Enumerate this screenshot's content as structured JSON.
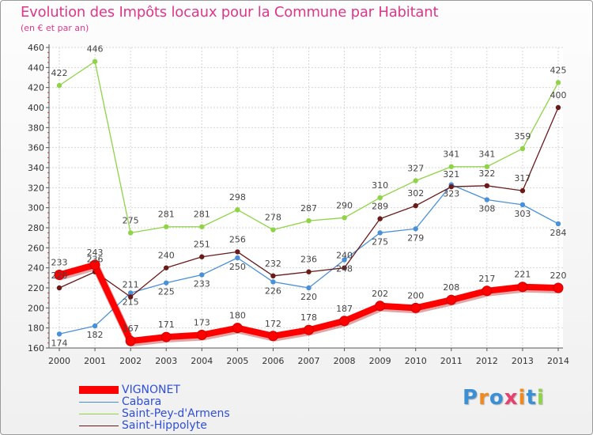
{
  "chart_data": {
    "type": "line",
    "title": "Evolution des Impôts locaux pour la Commune par Habitant",
    "subtitle": "(en € et par an)",
    "xlabel": "",
    "ylabel": "",
    "x": [
      "2000",
      "2001",
      "2002",
      "2003",
      "2004",
      "2005",
      "2006",
      "2007",
      "2008",
      "2009",
      "2010",
      "2011",
      "2012",
      "2013",
      "2014"
    ],
    "ylim": [
      160,
      460
    ],
    "yticks": [
      160,
      180,
      200,
      220,
      240,
      260,
      280,
      300,
      320,
      340,
      360,
      380,
      400,
      420,
      440,
      460
    ],
    "grid": true,
    "legend_position": "bottom-left",
    "series": [
      {
        "name": "VIGNONET",
        "color": "#ff0000",
        "values": [
          233,
          243,
          167,
          171,
          173,
          180,
          172,
          178,
          187,
          202,
          200,
          208,
          217,
          221,
          220
        ]
      },
      {
        "name": "Cabara",
        "color": "#4a90d9",
        "values": [
          174,
          182,
          215,
          225,
          233,
          250,
          226,
          220,
          248,
          275,
          279,
          323,
          308,
          303,
          284
        ]
      },
      {
        "name": "Saint-Pey-d'Armens",
        "color": "#8ed446",
        "values": [
          422,
          446,
          275,
          281,
          281,
          298,
          278,
          287,
          290,
          310,
          327,
          341,
          341,
          359,
          425
        ]
      },
      {
        "name": "Saint-Hippolyte",
        "color": "#6b1a1a",
        "values": [
          220,
          236,
          211,
          240,
          251,
          256,
          232,
          236,
          240,
          289,
          302,
          321,
          322,
          317,
          400
        ]
      }
    ]
  },
  "logo": {
    "text": "Proxiti",
    "letters": [
      "P",
      "r",
      "o",
      "x",
      "i",
      "t",
      "i"
    ],
    "colors": [
      "#3a8fd6",
      "#f08a1c",
      "#3a8fd6",
      "#e83f6f",
      "#f08a1c",
      "#3a8fd6",
      "#8ed446"
    ]
  }
}
